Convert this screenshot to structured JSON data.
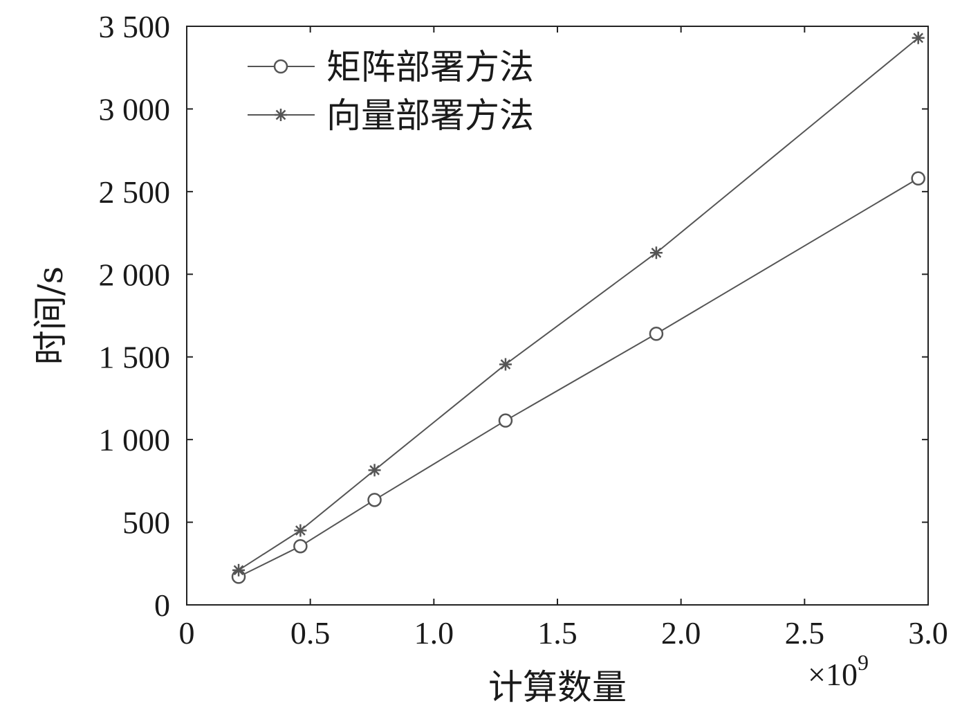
{
  "chart_data": {
    "type": "line",
    "xlabel": "计算数量",
    "ylabel": "时间/s",
    "x_multiplier_label": "×10",
    "x_multiplier_exponent": "9",
    "xlim": [
      0,
      3.0
    ],
    "ylim": [
      0,
      3500
    ],
    "x_ticks": [
      0,
      0.5,
      1.0,
      1.5,
      2.0,
      2.5,
      3.0
    ],
    "x_tick_labels": [
      "0",
      "0.5",
      "1.0",
      "1.5",
      "2.0",
      "2.5",
      "3.0"
    ],
    "y_ticks": [
      0,
      500,
      1000,
      1500,
      2000,
      2500,
      3000,
      3500
    ],
    "y_tick_labels": [
      "0",
      "500",
      "1 000",
      "1 500",
      "2 000",
      "2 500",
      "3 000",
      "3 500"
    ],
    "grid": false,
    "legend_position": "top-left",
    "colors": {
      "line": "#555555",
      "axis": "#222222"
    },
    "series": [
      {
        "name": "矩阵部署方法",
        "marker": "circle",
        "x": [
          0.21,
          0.46,
          0.76,
          1.29,
          1.9,
          2.96
        ],
        "y": [
          170,
          355,
          635,
          1115,
          1640,
          2580
        ]
      },
      {
        "name": "向量部署方法",
        "marker": "asterisk",
        "x": [
          0.21,
          0.46,
          0.76,
          1.29,
          1.9,
          2.96
        ],
        "y": [
          210,
          450,
          815,
          1455,
          2130,
          3430
        ]
      }
    ]
  }
}
